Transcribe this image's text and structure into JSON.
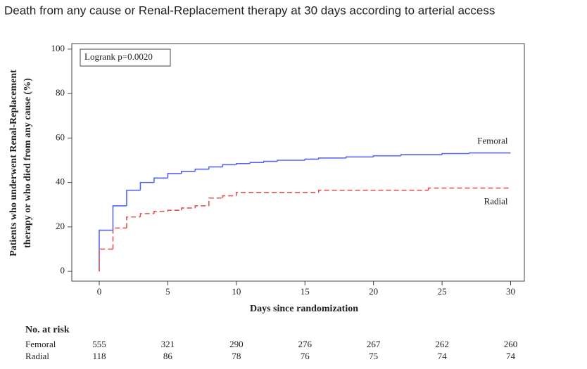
{
  "chart_data": {
    "type": "step",
    "title": "Death from any cause or Renal-Replacement therapy at 30 days according to arterial access",
    "xlabel": "Days since randomization",
    "ylabel": [
      "Patients who underwent Renal-Replacement",
      "therapy or who died from any cause (%)"
    ],
    "annotation": "Logrank p=0.0020",
    "xlim": [
      -2,
      31
    ],
    "xticks": [
      0,
      5,
      10,
      15,
      20,
      25,
      30
    ],
    "ylim": [
      -4.4,
      102.5
    ],
    "yticks": [
      0,
      20,
      40,
      60,
      80,
      100
    ],
    "series": [
      {
        "name": "Femoral",
        "color": "#5566ee",
        "line_style": "solid",
        "x": [
          0,
          0,
          1,
          2,
          3,
          4,
          5,
          6,
          7,
          8,
          9,
          10,
          11,
          12,
          13,
          15,
          16,
          18,
          20,
          22,
          25,
          27,
          30
        ],
        "values": [
          0,
          18.5,
          29.5,
          36.5,
          40,
          42,
          44,
          45,
          46,
          47,
          48,
          48.5,
          49,
          49.5,
          50,
          50.5,
          51,
          51.5,
          52,
          52.5,
          53,
          53.3,
          53.3
        ]
      },
      {
        "name": "Radial",
        "color": "#e05555",
        "line_style": "dashed",
        "x": [
          0,
          0,
          1,
          2,
          3,
          4,
          5,
          6,
          7,
          8,
          9,
          10,
          16,
          24,
          30
        ],
        "values": [
          0,
          10,
          19.5,
          24.5,
          26,
          27,
          27.5,
          28.5,
          29.5,
          33,
          34,
          35.5,
          36.5,
          37.5,
          37.5
        ]
      }
    ],
    "risk_table": {
      "title": "No. at risk",
      "rows": [
        {
          "name": "Femoral",
          "color": "#5566ee",
          "values": [
            555,
            321,
            290,
            276,
            267,
            262,
            260
          ]
        },
        {
          "name": "Radial",
          "color": "#e05555",
          "values": [
            118,
            86,
            78,
            76,
            75,
            74,
            74
          ]
        }
      ]
    }
  }
}
